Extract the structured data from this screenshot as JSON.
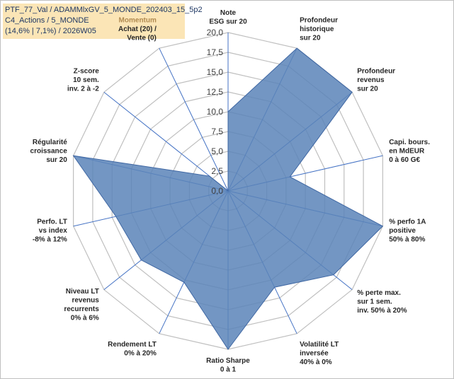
{
  "info": {
    "line1": "PTF_77_Val / ADAMMlxGV_5_MONDE_202403_15_5p2",
    "line2": "C4_Actions / 5_MONDE",
    "line3": "(14,6% | 7,1%) / 2026W05"
  },
  "chart_data": {
    "type": "radar",
    "title": "",
    "rlim": [
      0,
      20
    ],
    "ticks": [
      "0,0",
      "2,5",
      "5,0",
      "7,5",
      "10,0",
      "12,5",
      "15,0",
      "17,5",
      "20,0"
    ],
    "grid": true,
    "colors": {
      "fill": "#5b84b8",
      "fill_opacity": 0.85,
      "stroke": "#3f67a3",
      "grid": "#bfbfbf",
      "spoke": "#4472c4"
    },
    "axes": [
      {
        "lines": [
          "Note",
          "ESG sur 20"
        ],
        "value": 10.0
      },
      {
        "lines": [
          "Profondeur",
          "historique",
          "sur 20"
        ],
        "value": 20.0
      },
      {
        "lines": [
          "Profondeur",
          "revenus",
          "sur 20"
        ],
        "value": 20.0
      },
      {
        "lines": [
          "Capi. bours.",
          "en MdEUR",
          "0 à 60 G€"
        ],
        "value": 8.0
      },
      {
        "lines": [
          "% perfo 1A",
          "positive",
          "50% à 80%"
        ],
        "value": 20.0
      },
      {
        "lines": [
          "% perte max.",
          "sur 1 sem.",
          "inv. 50% à 20%"
        ],
        "value": 17.0
      },
      {
        "lines": [
          "Volatilité LT",
          "inversée",
          "40% à 0%"
        ],
        "value": 13.5
      },
      {
        "lines": [
          "Ratio Sharpe",
          "0 à 1"
        ],
        "value": 20.0
      },
      {
        "lines": [
          "Rendement LT",
          "0% à 20%"
        ],
        "value": 12.8
      },
      {
        "lines": [
          "Niveau LT",
          "revenus",
          "recurrents",
          "0% à 6%"
        ],
        "value": 14.0
      },
      {
        "lines": [
          "Perfo. LT",
          "vs index",
          "-8% à 12%"
        ],
        "value": 14.5
      },
      {
        "lines": [
          "Régularité",
          "croissance",
          "sur 20"
        ],
        "value": 20.0
      },
      {
        "lines": [
          "Z-score",
          "10 sem.",
          "inv. 2 à -2"
        ],
        "value": 3.0
      },
      {
        "lines": [
          "Momentum",
          "Achat (20) /",
          "Vente (0)"
        ],
        "value": 0.0,
        "muted_first_line": true
      }
    ]
  }
}
